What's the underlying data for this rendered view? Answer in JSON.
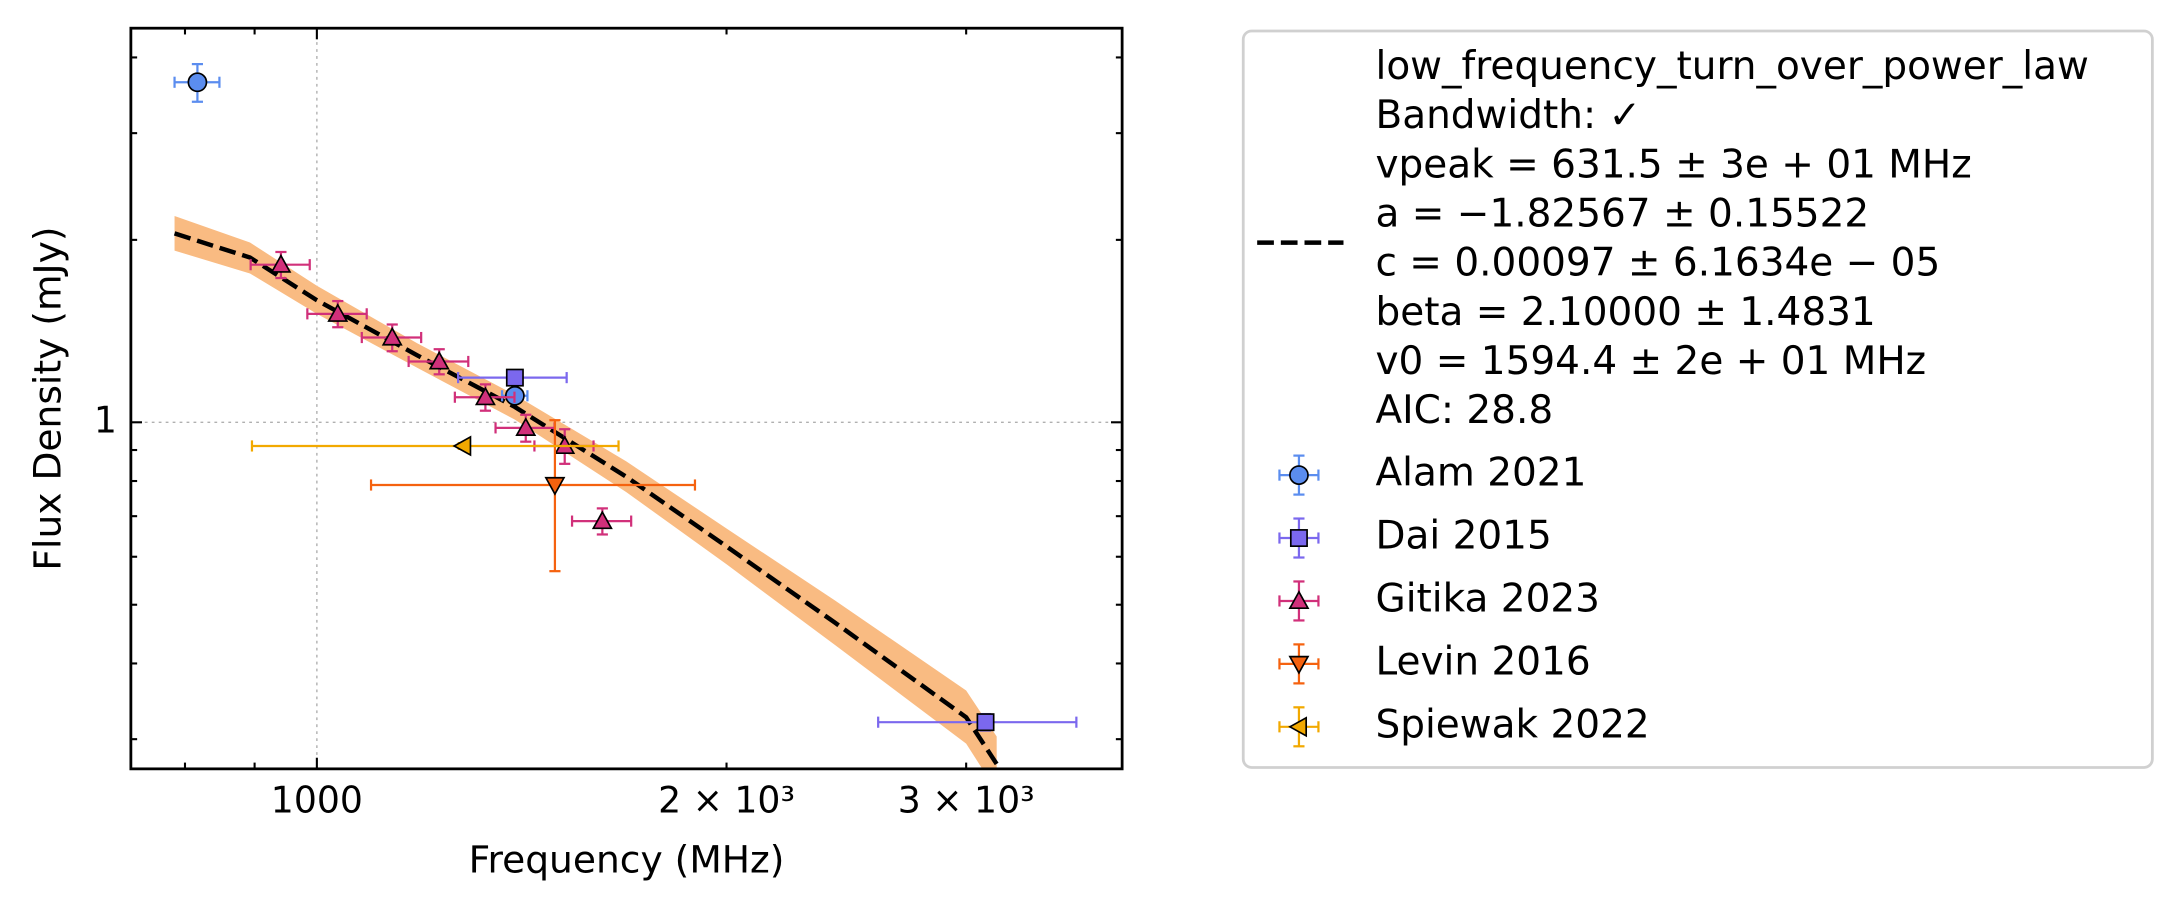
{
  "chart_data": {
    "type": "scatter",
    "xlabel": "Frequency (MHz)",
    "ylabel": "Flux Density (mJy)",
    "log_x": true,
    "log_y": true,
    "grid": true,
    "xlim": [
      730,
      3906
    ],
    "ylim": [
      0.268,
      4.47
    ],
    "xticks": [
      1000
    ],
    "xminorticks": [
      800,
      900,
      {
        "value": 2000,
        "label": "2 × 10³"
      },
      {
        "value": 3000,
        "label": "3 × 10³"
      }
    ],
    "yticks": [
      1
    ],
    "yminorticks": [
      0.3,
      0.4,
      0.5,
      0.6,
      0.7,
      0.8,
      0.9,
      2,
      3,
      4
    ],
    "fit": {
      "name_lines": [
        "low_frequency_turn_over_power_law",
        "Bandwidth: ✓",
        "vpeak = 631.5 ± 3e + 01 MHz",
        "a = −1.82567 ± 0.15522",
        "c = 0.00097 ± 6.1634e − 05",
        "beta = 2.10000 ± 1.4831",
        "v0 = 1594.4 ± 2e + 01 MHz",
        "AIC: 28.8"
      ],
      "color": "#000000",
      "band_color": "#f9bb82",
      "x": [
        786,
        893,
        1000,
        1185,
        1398,
        1688,
        2000,
        2403,
        3000,
        3159
      ],
      "values": [
        2.05,
        1.87,
        1.59,
        1.29,
        1.06,
        0.813,
        0.624,
        0.467,
        0.326,
        0.273
      ],
      "lower": [
        1.92,
        1.76,
        1.51,
        1.23,
        1.01,
        0.767,
        0.583,
        0.429,
        0.295,
        0.246
      ],
      "upper": [
        2.19,
        1.98,
        1.68,
        1.35,
        1.11,
        0.862,
        0.668,
        0.508,
        0.361,
        0.303
      ]
    },
    "legend": "outside right",
    "series": [
      {
        "name": "Alam 2021",
        "color": "#5b8def",
        "marker": "circle",
        "x": [
          817,
          1398
        ],
        "values": [
          3.64,
          1.106
        ],
        "xerr": [
          31,
          30
        ],
        "yerr": [
          0.26,
          0.03
        ]
      },
      {
        "name": "Dai 2015",
        "color": "#7b68ee",
        "marker": "square",
        "x": [
          1398,
          3100
        ],
        "values": [
          1.185,
          0.32
        ],
        "xerr": [
          128,
          515
        ],
        "yerr": [
          0.03,
          0.01
        ]
      },
      {
        "name": "Gitika 2023",
        "color": "#d1307a",
        "marker": "triangle-up",
        "x": [
          941,
          1036,
          1136,
          1230,
          1330,
          1424,
          1521,
          1621
        ],
        "values": [
          1.82,
          1.51,
          1.38,
          1.26,
          1.1,
          0.979,
          0.914,
          0.687
        ],
        "xerr": [
          47,
          52,
          57,
          62,
          67,
          71,
          76,
          81
        ],
        "yerr": [
          0.09,
          0.075,
          0.07,
          0.06,
          0.055,
          0.05,
          0.06,
          0.034
        ]
      },
      {
        "name": "Levin 2016",
        "color": "#f5620f",
        "marker": "triangle-down",
        "x": [
          1496
        ],
        "values": [
          0.788
        ],
        "xerr": [
          400
        ],
        "yerr": [
          0.22
        ]
      },
      {
        "name": "Spiewak 2022",
        "color": "#f2a900",
        "marker": "triangle-left",
        "x": [
          1281
        ],
        "values": [
          0.914
        ],
        "xerr": [
          385
        ],
        "yerr": [
          0.01
        ]
      }
    ]
  }
}
